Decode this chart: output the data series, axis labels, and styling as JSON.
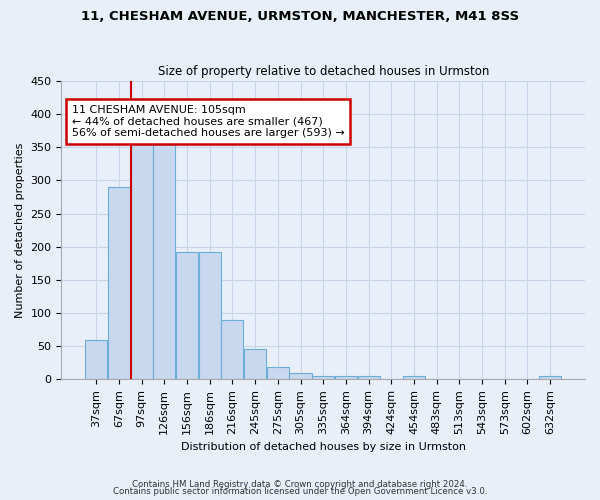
{
  "title1": "11, CHESHAM AVENUE, URMSTON, MANCHESTER, M41 8SS",
  "title2": "Size of property relative to detached houses in Urmston",
  "xlabel": "Distribution of detached houses by size in Urmston",
  "ylabel": "Number of detached properties",
  "footer1": "Contains HM Land Registry data © Crown copyright and database right 2024.",
  "footer2": "Contains public sector information licensed under the Open Government Licence v3.0.",
  "categories": [
    "37sqm",
    "67sqm",
    "97sqm",
    "126sqm",
    "156sqm",
    "186sqm",
    "216sqm",
    "245sqm",
    "275sqm",
    "305sqm",
    "335sqm",
    "364sqm",
    "394sqm",
    "424sqm",
    "454sqm",
    "483sqm",
    "513sqm",
    "543sqm",
    "573sqm",
    "602sqm",
    "632sqm"
  ],
  "values": [
    59,
    290,
    355,
    355,
    192,
    192,
    90,
    46,
    19,
    9,
    5,
    5,
    5,
    0,
    5,
    0,
    0,
    0,
    0,
    0,
    5
  ],
  "bar_color": "#c8d8ee",
  "bar_edge_color": "#6baed6",
  "vline_x": 2.0,
  "vline_color": "#cc0000",
  "annotation_text": "11 CHESHAM AVENUE: 105sqm\n← 44% of detached houses are smaller (467)\n56% of semi-detached houses are larger (593) →",
  "annotation_box_color": "#ffffff",
  "annotation_box_edge": "#cc0000",
  "ylim": [
    0,
    450
  ],
  "yticks": [
    0,
    50,
    100,
    150,
    200,
    250,
    300,
    350,
    400,
    450
  ],
  "grid_color": "#c8d4e8",
  "bg_color": "#e8eff8",
  "plot_bg_color": "#e8eff8",
  "title1_fontsize": 9.5,
  "title2_fontsize": 8.5
}
